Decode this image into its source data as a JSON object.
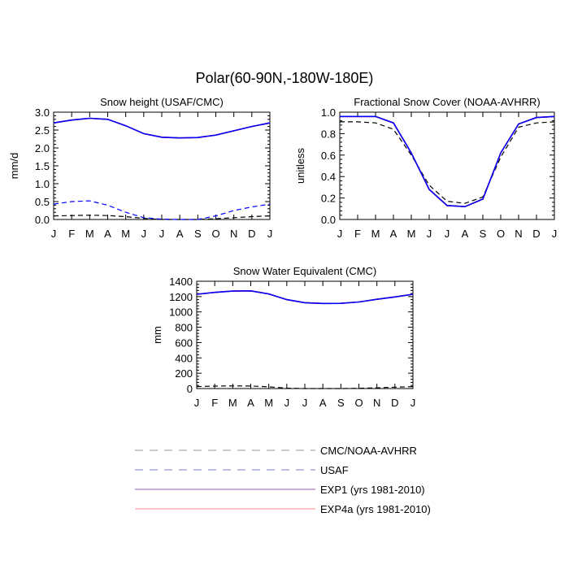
{
  "figure": {
    "title": "Polar(60-90N,-180W-180E)"
  },
  "colors": {
    "obs": "#000000",
    "usaf": "#0000ff",
    "exp1": "#800080",
    "exp4a": "#ff0000",
    "legend_obs": "#999999",
    "legend_usaf": "#7b7bd8",
    "legend_exp1": "#9a5ab8",
    "legend_exp4a": "#ff8a8a"
  },
  "legend": [
    {
      "label": "CMC/NOAA-AVHRR",
      "style": "dashed",
      "color_key": "legend_obs"
    },
    {
      "label": "USAF",
      "style": "dashed",
      "color_key": "legend_usaf"
    },
    {
      "label": "EXP1 (yrs 1981-2010)",
      "style": "solid",
      "color_key": "legend_exp1"
    },
    {
      "label": "EXP4a (yrs 1981-2010)",
      "style": "solid",
      "color_key": "legend_exp4a"
    }
  ],
  "chart_data": [
    {
      "type": "line",
      "title": "Snow height (USAF/CMC)",
      "xlabel": "",
      "ylabel": "mm/d",
      "categories": [
        "J",
        "F",
        "M",
        "A",
        "M",
        "J",
        "J",
        "A",
        "S",
        "O",
        "N",
        "D",
        "J"
      ],
      "ylim": [
        0,
        3.0
      ],
      "yticks": [
        0.0,
        0.5,
        1.0,
        1.5,
        2.0,
        2.5,
        3.0
      ],
      "ytick_labels": [
        "0.0",
        "0.5",
        "1.0",
        "1.5",
        "2.0",
        "2.5",
        "3.0"
      ],
      "series": [
        {
          "name": "CMC/NOAA-AVHRR",
          "color_key": "obs",
          "style": "dashed",
          "values": [
            0.1,
            0.11,
            0.12,
            0.11,
            0.08,
            0.03,
            0.0,
            0.0,
            0.0,
            0.02,
            0.05,
            0.08,
            0.1
          ]
        },
        {
          "name": "USAF",
          "color_key": "usaf",
          "style": "dashed",
          "values": [
            0.43,
            0.5,
            0.52,
            0.4,
            0.2,
            0.05,
            0.01,
            0.0,
            0.0,
            0.1,
            0.25,
            0.35,
            0.43
          ]
        },
        {
          "name": "EXP4a (yrs 1981-2010)",
          "color_key": "exp4a",
          "style": "solid",
          "values": [
            2.7,
            2.78,
            2.83,
            2.8,
            2.62,
            2.4,
            2.3,
            2.28,
            2.29,
            2.36,
            2.48,
            2.6,
            2.7
          ]
        },
        {
          "name": "EXP1 (yrs 1981-2010)",
          "color_key": "usaf",
          "style": "solid",
          "values": [
            2.7,
            2.78,
            2.83,
            2.8,
            2.62,
            2.4,
            2.3,
            2.28,
            2.29,
            2.36,
            2.48,
            2.6,
            2.7
          ]
        }
      ]
    },
    {
      "type": "line",
      "title": "Fractional Snow Cover (NOAA-AVHRR)",
      "xlabel": "",
      "ylabel": "unitless",
      "categories": [
        "J",
        "F",
        "M",
        "A",
        "M",
        "J",
        "J",
        "A",
        "S",
        "O",
        "N",
        "D",
        "J"
      ],
      "ylim": [
        0,
        1.0
      ],
      "yticks": [
        0.0,
        0.2,
        0.4,
        0.6,
        0.8,
        1.0
      ],
      "ytick_labels": [
        "0.0",
        "0.2",
        "0.4",
        "0.6",
        "0.8",
        "1.0"
      ],
      "series": [
        {
          "name": "CMC/NOAA-AVHRR",
          "color_key": "obs",
          "style": "dashed",
          "values": [
            0.91,
            0.91,
            0.9,
            0.84,
            0.6,
            0.32,
            0.17,
            0.15,
            0.21,
            0.58,
            0.86,
            0.9,
            0.91
          ]
        },
        {
          "name": "EXP4a (yrs 1981-2010)",
          "color_key": "exp4a",
          "style": "solid",
          "values": [
            0.96,
            0.96,
            0.96,
            0.9,
            0.62,
            0.28,
            0.13,
            0.12,
            0.19,
            0.62,
            0.89,
            0.95,
            0.96
          ]
        },
        {
          "name": "EXP1 (yrs 1981-2010)",
          "color_key": "usaf",
          "style": "solid",
          "values": [
            0.96,
            0.96,
            0.96,
            0.9,
            0.62,
            0.28,
            0.13,
            0.12,
            0.19,
            0.62,
            0.89,
            0.95,
            0.96
          ]
        }
      ]
    },
    {
      "type": "line",
      "title": "Snow Water Equivalent (CMC)",
      "xlabel": "",
      "ylabel": "mm",
      "categories": [
        "J",
        "F",
        "M",
        "A",
        "M",
        "J",
        "J",
        "A",
        "S",
        "O",
        "N",
        "D",
        "J"
      ],
      "ylim": [
        0,
        1400
      ],
      "yticks": [
        0,
        200,
        400,
        600,
        800,
        1000,
        1200,
        1400
      ],
      "ytick_labels": [
        "0",
        "200",
        "400",
        "600",
        "800",
        "1000",
        "1200",
        "1400"
      ],
      "series": [
        {
          "name": "CMC/NOAA-AVHRR",
          "color_key": "obs",
          "style": "dashed",
          "values": [
            25,
            32,
            35,
            33,
            22,
            5,
            0,
            0,
            0,
            3,
            10,
            18,
            25
          ]
        },
        {
          "name": "EXP4a (yrs 1981-2010)",
          "color_key": "exp4a",
          "style": "solid",
          "values": [
            1230,
            1255,
            1272,
            1275,
            1235,
            1160,
            1120,
            1110,
            1112,
            1130,
            1165,
            1195,
            1230
          ]
        },
        {
          "name": "EXP1 (yrs 1981-2010)",
          "color_key": "usaf",
          "style": "solid",
          "values": [
            1230,
            1255,
            1272,
            1275,
            1235,
            1160,
            1120,
            1110,
            1112,
            1130,
            1165,
            1195,
            1230
          ]
        }
      ]
    }
  ]
}
